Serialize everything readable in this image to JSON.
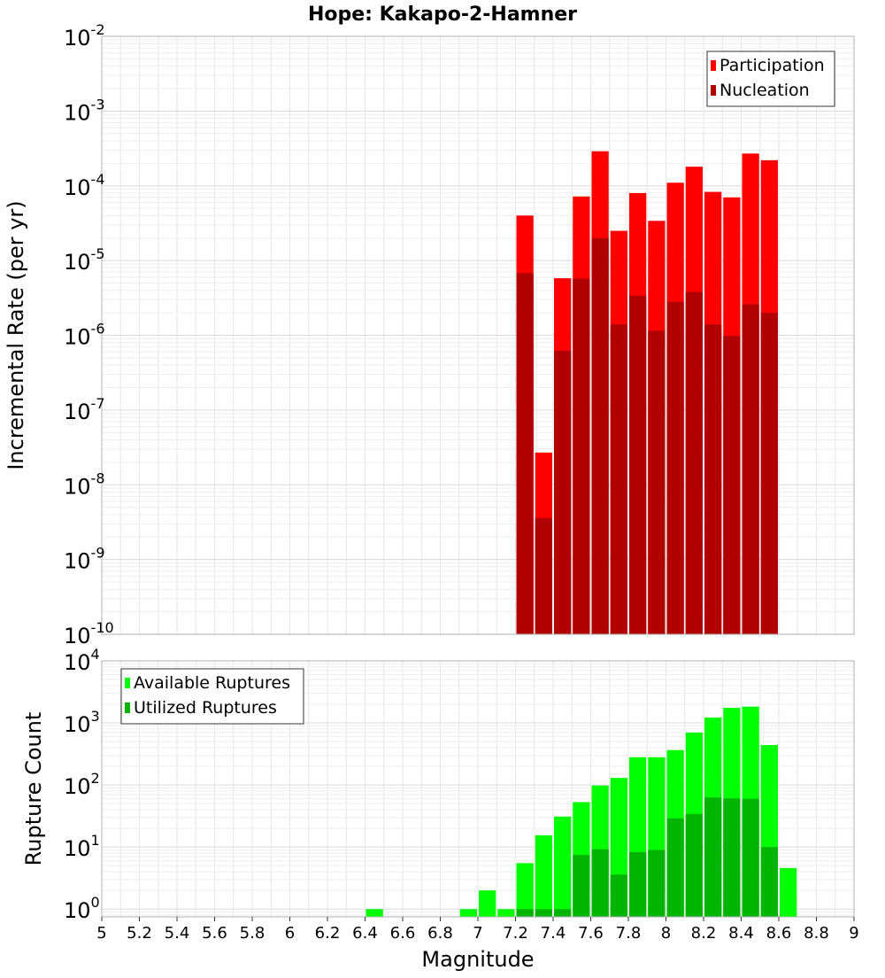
{
  "title": "Hope: Kakapo-2-Hamner",
  "colors": {
    "participation": "#ff0000",
    "nucleation": "#b00000",
    "available": "#00ff00",
    "utilized": "#00b400",
    "grid": "#e6e6e6",
    "frame": "#b0b0b0"
  },
  "chart_data": [
    {
      "type": "bar",
      "ylabel": "Incremental Rate (per yr)",
      "yscale": "log",
      "ylim": [
        1e-10,
        0.01
      ],
      "xlim": [
        5,
        9
      ],
      "grid": true,
      "legend_position": "top-right",
      "y_ticks": [
        {
          "base": "10",
          "exp": "-2"
        },
        {
          "base": "10",
          "exp": "-3"
        },
        {
          "base": "10",
          "exp": "-4"
        },
        {
          "base": "10",
          "exp": "-5"
        },
        {
          "base": "10",
          "exp": "-6"
        },
        {
          "base": "10",
          "exp": "-7"
        },
        {
          "base": "10",
          "exp": "-8"
        },
        {
          "base": "10",
          "exp": "-9"
        },
        {
          "base": "10",
          "exp": "-10"
        }
      ],
      "x": [
        7.25,
        7.35,
        7.45,
        7.55,
        7.65,
        7.75,
        7.85,
        7.95,
        8.05,
        8.15,
        8.25,
        8.35,
        8.45,
        8.55
      ],
      "series": [
        {
          "name": "Participation",
          "values": [
            4e-05,
            2.7e-08,
            5.8e-06,
            7.2e-05,
            0.00029,
            2.5e-05,
            8e-05,
            3.4e-05,
            0.00011,
            0.00018,
            8.3e-05,
            7e-05,
            0.00027,
            0.00022
          ]
        },
        {
          "name": "Nucleation",
          "values": [
            6.8e-06,
            3.6e-09,
            6.2e-07,
            5.7e-06,
            2e-05,
            1.4e-06,
            3.4e-06,
            1.15e-06,
            2.8e-06,
            3.8e-06,
            1.4e-06,
            9.8e-07,
            2.6e-06,
            2e-06
          ]
        }
      ]
    },
    {
      "type": "bar",
      "xlabel": "Magnitude",
      "ylabel": "Rupture Count",
      "yscale": "log",
      "ylim": [
        0.75,
        10000
      ],
      "xlim": [
        5,
        9
      ],
      "grid": true,
      "legend_position": "top-left",
      "y_ticks": [
        {
          "base": "10",
          "exp": "4"
        },
        {
          "base": "10",
          "exp": "3"
        },
        {
          "base": "10",
          "exp": "2"
        },
        {
          "base": "10",
          "exp": "1"
        },
        {
          "base": "10",
          "exp": "0"
        }
      ],
      "x_ticks": [
        "5",
        "5.2",
        "5.4",
        "5.6",
        "5.8",
        "6",
        "6.2",
        "6.4",
        "6.6",
        "6.8",
        "7",
        "7.2",
        "7.4",
        "7.6",
        "7.8",
        "8",
        "8.2",
        "8.4",
        "8.6",
        "8.8",
        "9"
      ],
      "x": [
        6.45,
        6.95,
        7.05,
        7.15,
        7.25,
        7.35,
        7.45,
        7.55,
        7.65,
        7.75,
        7.85,
        7.95,
        8.05,
        8.15,
        8.25,
        8.35,
        8.45,
        8.55,
        8.65
      ],
      "series": [
        {
          "name": "Available Ruptures",
          "values": [
            1,
            1,
            2,
            1,
            5.5,
            15.5,
            31,
            53,
            98,
            130,
            280,
            280,
            365,
            700,
            1220,
            1750,
            1830,
            440,
            4.6
          ]
        },
        {
          "name": "Utilized Ruptures",
          "values": [
            null,
            null,
            null,
            null,
            1,
            1,
            1,
            7.5,
            9.2,
            3.6,
            8.3,
            9.0,
            29,
            34,
            63,
            61,
            60,
            10,
            null
          ]
        }
      ]
    }
  ]
}
